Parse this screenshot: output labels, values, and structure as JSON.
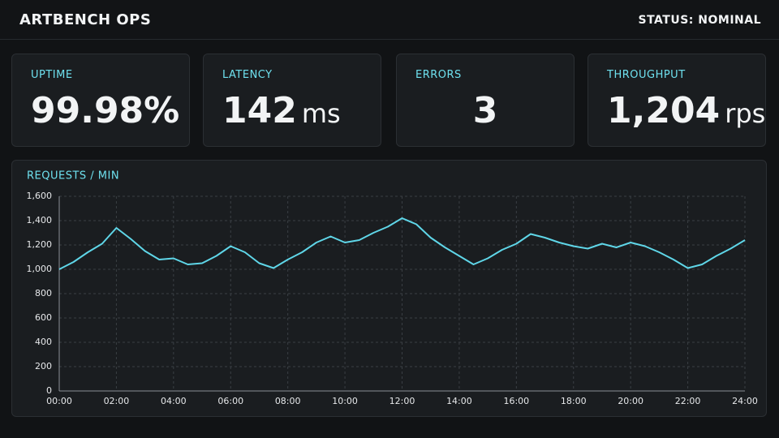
{
  "header": {
    "title": "ARTBENCH OPS",
    "status": "STATUS: NOMINAL"
  },
  "kpis": [
    {
      "label": "UPTIME",
      "value": "99.98%"
    },
    {
      "label": "LATENCY",
      "value": "142",
      "unit": "ms"
    },
    {
      "label": "ERRORS",
      "value": "3"
    },
    {
      "label": "THROUGHPUT",
      "value": "1,204",
      "unit": "rps"
    }
  ],
  "chart_data": {
    "type": "line",
    "title": "REQUESTS / MIN",
    "color": "#5fd6e8",
    "grid": true,
    "x": [
      0,
      0.5,
      1,
      1.5,
      2,
      2.5,
      3,
      3.5,
      4,
      4.5,
      5,
      5.5,
      6,
      6.5,
      7,
      7.5,
      8,
      8.5,
      9,
      9.5,
      10,
      10.5,
      11,
      11.5,
      12,
      12.5,
      13,
      13.5,
      14,
      14.5,
      15,
      15.5,
      16,
      16.5,
      17,
      17.5,
      18,
      18.5,
      19,
      19.5,
      20,
      20.5,
      21,
      21.5,
      22,
      22.5,
      23,
      23.5,
      24
    ],
    "values": [
      1000,
      1060,
      1140,
      1210,
      1340,
      1250,
      1150,
      1080,
      1090,
      1040,
      1050,
      1110,
      1190,
      1140,
      1050,
      1010,
      1080,
      1140,
      1220,
      1270,
      1220,
      1240,
      1300,
      1350,
      1420,
      1370,
      1260,
      1180,
      1110,
      1040,
      1090,
      1160,
      1210,
      1290,
      1260,
      1220,
      1190,
      1170,
      1210,
      1180,
      1220,
      1190,
      1140,
      1080,
      1010,
      1040,
      1110,
      1170,
      1240
    ],
    "xlim": [
      0,
      24
    ],
    "xticks": [
      {
        "value": 0,
        "label": "00:00"
      },
      {
        "value": 2,
        "label": "02:00"
      },
      {
        "value": 4,
        "label": "04:00"
      },
      {
        "value": 6,
        "label": "06:00"
      },
      {
        "value": 8,
        "label": "08:00"
      },
      {
        "value": 10,
        "label": "10:00"
      },
      {
        "value": 12,
        "label": "12:00"
      },
      {
        "value": 14,
        "label": "14:00"
      },
      {
        "value": 16,
        "label": "16:00"
      },
      {
        "value": 18,
        "label": "18:00"
      },
      {
        "value": 20,
        "label": "20:00"
      },
      {
        "value": 22,
        "label": "22:00"
      },
      {
        "value": 24,
        "label": "24:00"
      }
    ],
    "ylim": [
      0,
      1600
    ],
    "yticks": [
      0,
      200,
      400,
      600,
      800,
      {
        "value": 1000,
        "label": "1,000"
      },
      {
        "value": 1200,
        "label": "1,200"
      },
      {
        "value": 1400,
        "label": "1,400"
      },
      {
        "value": 1600,
        "label": "1,600"
      }
    ]
  }
}
